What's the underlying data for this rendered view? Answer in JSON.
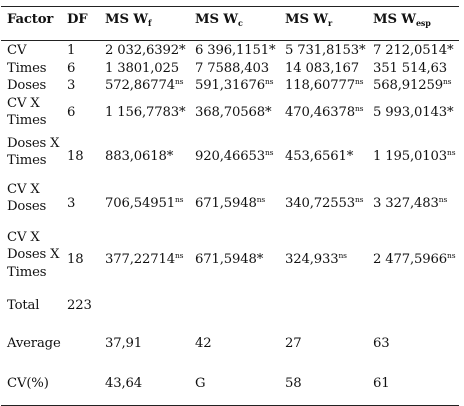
{
  "table": {
    "headers": {
      "factor": "Factor",
      "df": "DF",
      "wf": {
        "base": "MS W",
        "sub": "f"
      },
      "wc": {
        "base": "MS W",
        "sub": "c"
      },
      "wr": {
        "base": "MS W",
        "sub": "r"
      },
      "wesp": {
        "base": "MS W",
        "sub": "esp"
      }
    },
    "rows": [
      {
        "factor": [
          "CV"
        ],
        "df": "1",
        "wf": {
          "value": "2 032,6392*",
          "sup": ""
        },
        "wc": {
          "value": "6 396,1151*",
          "sup": ""
        },
        "wr": {
          "value": "5 731,8153*",
          "sup": ""
        },
        "wesp": {
          "value": "7 212,0514*",
          "sup": ""
        }
      },
      {
        "factor": [
          "Times"
        ],
        "df": "6",
        "wf": {
          "value": "1 3801,025",
          "sup": ""
        },
        "wc": {
          "value": "7 7588,403",
          "sup": ""
        },
        "wr": {
          "value": "14 083,167",
          "sup": ""
        },
        "wesp": {
          "value": "351 514,63",
          "sup": ""
        }
      },
      {
        "factor": [
          "Doses"
        ],
        "df": "3",
        "wf": {
          "value": "572,86774",
          "sup": "ns"
        },
        "wc": {
          "value": "591,31676",
          "sup": "ns"
        },
        "wr": {
          "value": "118,60777",
          "sup": "ns"
        },
        "wesp": {
          "value": "568,91259",
          "sup": "ns"
        }
      },
      {
        "factor": [
          "CV X",
          "Times"
        ],
        "df": "6",
        "wf": {
          "value": "1 156,7783*",
          "sup": ""
        },
        "wc": {
          "value": "368,70568*",
          "sup": ""
        },
        "wr": {
          "value": "470,46378",
          "sup": "ns"
        },
        "wesp": {
          "value": "5 993,0143*",
          "sup": ""
        }
      },
      {
        "factor": [
          "Doses X",
          "Times"
        ],
        "df": "18",
        "wf": {
          "value": "883,0618*",
          "sup": ""
        },
        "wc": {
          "value": "920,46653",
          "sup": "ns"
        },
        "wr": {
          "value": "453,6561*",
          "sup": ""
        },
        "wesp": {
          "value": "1 195,0103",
          "sup": "ns"
        }
      },
      {
        "factor": [
          "CV X",
          "Doses"
        ],
        "df": "3",
        "wf": {
          "value": "706,54951",
          "sup": "ns"
        },
        "wc": {
          "value": "671,5948",
          "sup": "ns"
        },
        "wr": {
          "value": "340,72553",
          "sup": "ns"
        },
        "wesp": {
          "value": "3 327,483",
          "sup": "ns"
        }
      },
      {
        "factor": [
          "CV X",
          "Doses X",
          "Times"
        ],
        "df": "18",
        "wf": {
          "value": "377,22714",
          "sup": "ns"
        },
        "wc": {
          "value": "671,5948*",
          "sup": ""
        },
        "wr": {
          "value": "324,933",
          "sup": "ns"
        },
        "wesp": {
          "value": "2 477,5966",
          "sup": "ns"
        }
      },
      {
        "factor": [
          "Total"
        ],
        "df": "223",
        "wf": {
          "value": "",
          "sup": ""
        },
        "wc": {
          "value": "",
          "sup": ""
        },
        "wr": {
          "value": "",
          "sup": ""
        },
        "wesp": {
          "value": "",
          "sup": ""
        }
      },
      {
        "factor": [
          "Average"
        ],
        "df": "",
        "wf": {
          "value": "37,91",
          "sup": ""
        },
        "wc": {
          "value": "42",
          "sup": ""
        },
        "wr": {
          "value": "27",
          "sup": ""
        },
        "wesp": {
          "value": "63",
          "sup": ""
        }
      },
      {
        "factor": [
          "CV(%)"
        ],
        "df": "",
        "wf": {
          "value": "43,64",
          "sup": ""
        },
        "wc": {
          "value": "G",
          "sup": ""
        },
        "wr": {
          "value": "58",
          "sup": ""
        },
        "wesp": {
          "value": "61",
          "sup": ""
        }
      }
    ]
  }
}
